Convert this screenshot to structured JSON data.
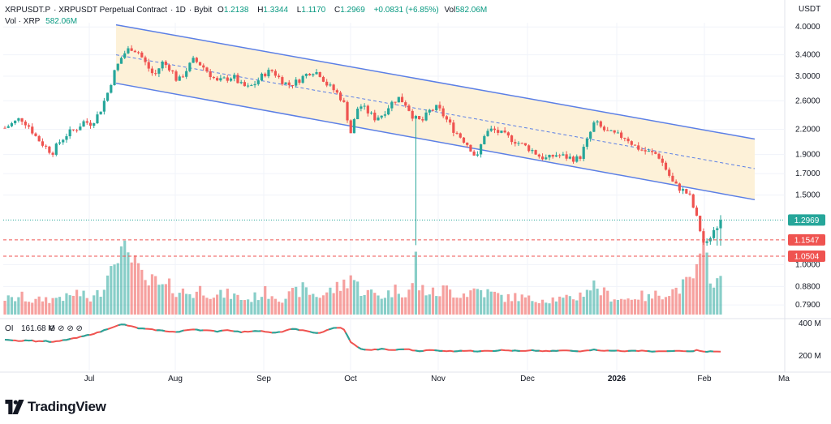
{
  "header": {
    "symbol": "XRPUSDT.P",
    "description": "XRPUSDT Perpetual Contract",
    "interval": "1D",
    "exchange": "Bybit",
    "open_label": "O",
    "open": "1.2138",
    "high_label": "H",
    "high": "1.3344",
    "low_label": "L",
    "low": "1.1170",
    "close_label": "C",
    "close": "1.2969",
    "change": "+0.0831 (+6.85%)",
    "vol_label": "Vol",
    "vol": "582.06M",
    "vol_series_label": "Vol · XRP",
    "vol_series_value": "582.06M"
  },
  "oi": {
    "label": "OI",
    "value": "161.68 M"
  },
  "price_axis_title": "USDT",
  "brand": "TradingView",
  "colors": {
    "up": "#26a69a",
    "down": "#ef5350",
    "channel": "#5b7fe6",
    "channel_fill": "#fdf1d8",
    "oi_up": "#26a69a",
    "oi_down": "#ef5350"
  },
  "icon": "tradingview-logo-icon",
  "chart_data": {
    "type": "candlestick",
    "scale": "log",
    "xlabels": [
      "Jul",
      "Aug",
      "Sep",
      "Oct",
      "Nov",
      "Dec",
      "2026",
      "Feb",
      "Ma"
    ],
    "ytick_labels": [
      "4.0000",
      "3.4000",
      "3.0000",
      "2.6000",
      "2.2000",
      "1.9000",
      "1.7000",
      "1.5000",
      "1.0000",
      "0.8800",
      "0.7900"
    ],
    "price_badges": [
      {
        "value": "1.2969",
        "style": "last"
      },
      {
        "value": "1.1547",
        "style": "level"
      },
      {
        "value": "1.0504",
        "style": "level"
      }
    ],
    "oi_ticks": [
      "400 M",
      "200 M"
    ],
    "ylim": [
      0.74,
      4.1
    ],
    "channel": {
      "upper_start": 4.05,
      "upper_end": 2.08,
      "lower_start": 2.88,
      "lower_end": 1.46,
      "mid_start": 3.4,
      "mid_end": 1.75
    },
    "price_path": [
      2.22,
      2.28,
      2.35,
      2.25,
      2.1,
      2.0,
      1.92,
      2.05,
      2.15,
      2.2,
      2.3,
      2.28,
      2.42,
      2.7,
      3.1,
      3.4,
      3.55,
      3.45,
      3.2,
      3.0,
      3.25,
      3.15,
      2.9,
      3.1,
      3.3,
      3.2,
      3.05,
      2.9,
      2.95,
      3.0,
      2.85,
      2.8,
      2.9,
      3.05,
      3.1,
      2.95,
      2.85,
      2.9,
      3.0,
      3.1,
      3.05,
      2.85,
      2.75,
      2.6,
      2.15,
      2.55,
      2.45,
      2.35,
      2.4,
      2.55,
      2.65,
      2.55,
      2.35,
      2.3,
      2.45,
      2.5,
      2.35,
      2.2,
      2.1,
      2.0,
      1.85,
      2.15,
      2.2,
      2.15,
      2.1,
      2.05,
      2.0,
      1.95,
      1.88,
      1.85,
      1.9,
      1.88,
      1.86,
      1.85,
      2.05,
      2.3,
      2.2,
      2.15,
      2.12,
      2.1,
      2.0,
      1.95,
      1.92,
      1.9,
      1.75,
      1.6,
      1.55,
      1.5,
      1.3,
      1.1,
      1.2138,
      1.2969
    ],
    "volume_profile": [
      0.22,
      0.2,
      0.25,
      0.2,
      0.18,
      0.22,
      0.2,
      0.25,
      0.22,
      0.3,
      0.25,
      0.2,
      0.3,
      0.5,
      1.0,
      0.75,
      1.0,
      0.55,
      0.4,
      0.45,
      0.35,
      0.38,
      0.32,
      0.3,
      0.28,
      0.35,
      0.3,
      0.25,
      0.28,
      0.26,
      0.22,
      0.2,
      0.25,
      0.3,
      0.28,
      0.22,
      0.25,
      0.3,
      0.35,
      0.28,
      0.25,
      0.3,
      0.35,
      0.4,
      0.55,
      0.35,
      0.3,
      0.28,
      0.25,
      0.3,
      0.35,
      0.3,
      0.4,
      0.35,
      0.3,
      0.28,
      0.35,
      0.3,
      0.28,
      0.3,
      0.35,
      0.3,
      0.28,
      0.25,
      0.22,
      0.25,
      0.22,
      0.2,
      0.22,
      0.2,
      0.22,
      0.2,
      0.22,
      0.25,
      0.35,
      0.4,
      0.3,
      0.25,
      0.22,
      0.2,
      0.25,
      0.25,
      0.22,
      0.28,
      0.3,
      0.32,
      0.38,
      0.42,
      0.6,
      0.8,
      0.5,
      0.42
    ],
    "oi_path": [
      0.62,
      0.6,
      0.58,
      0.6,
      0.57,
      0.58,
      0.55,
      0.58,
      0.62,
      0.65,
      0.7,
      0.75,
      0.8,
      0.88,
      0.95,
      1.0,
      0.95,
      0.9,
      0.88,
      0.86,
      0.84,
      0.82,
      0.8,
      0.85,
      0.88,
      0.85,
      0.84,
      0.82,
      0.86,
      0.84,
      0.8,
      0.82,
      0.84,
      0.82,
      0.78,
      0.8,
      0.86,
      0.88,
      0.84,
      0.8,
      0.78,
      0.85,
      0.92,
      0.9,
      0.55,
      0.4,
      0.35,
      0.36,
      0.38,
      0.35,
      0.36,
      0.38,
      0.34,
      0.33,
      0.35,
      0.34,
      0.33,
      0.32,
      0.34,
      0.33,
      0.32,
      0.34,
      0.33,
      0.35,
      0.34,
      0.33,
      0.32,
      0.34,
      0.33,
      0.32,
      0.33,
      0.34,
      0.33,
      0.32,
      0.35,
      0.36,
      0.34,
      0.33,
      0.34,
      0.32,
      0.33,
      0.34,
      0.32,
      0.31,
      0.33,
      0.32,
      0.33,
      0.31,
      0.35,
      0.3,
      0.32,
      0.31
    ],
    "grid": true
  }
}
